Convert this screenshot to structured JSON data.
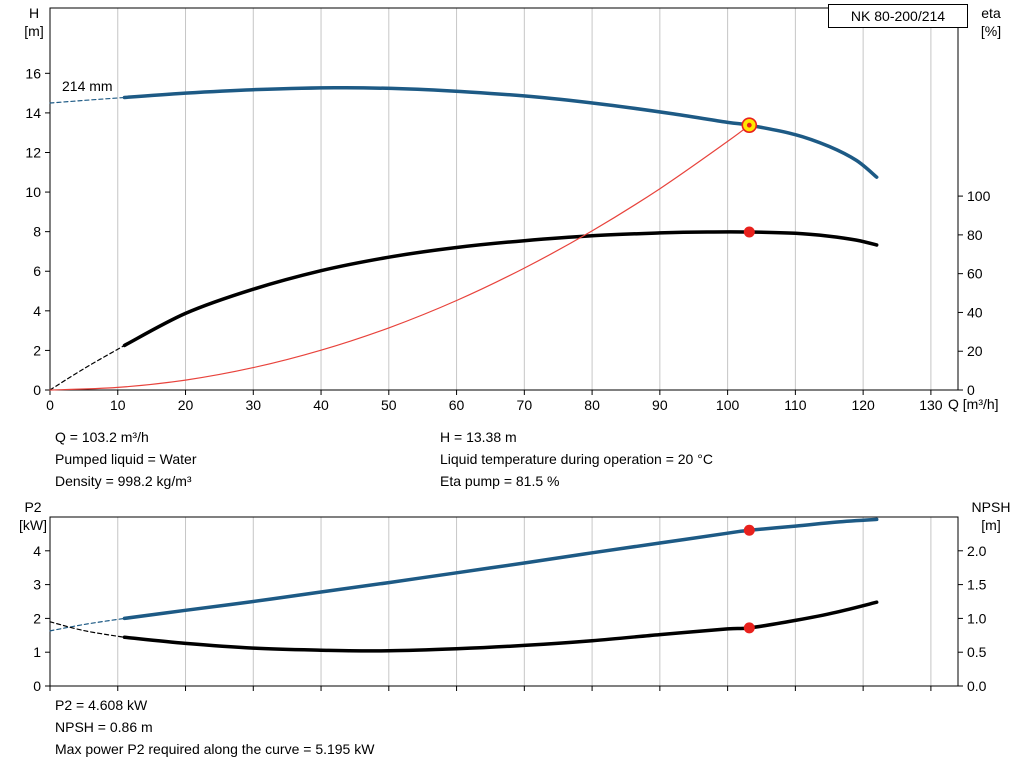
{
  "pump": {
    "model_box": "NK 80-200/214",
    "impeller_diameter": "214 mm"
  },
  "axis_titles": {
    "head": [
      "H",
      "[m]"
    ],
    "eta": [
      "eta",
      "[%]"
    ],
    "flow": "Q [m³/h]",
    "p2": [
      "P2",
      "[kW]"
    ],
    "npsh": [
      "NPSH",
      "[m]"
    ]
  },
  "info_top": {
    "left": [
      "Q = 103.2 m³/h",
      "Pumped liquid = Water",
      "Density = 998.2 kg/m³"
    ],
    "right": [
      "H = 13.38 m",
      "Liquid temperature during operation = 20 °C",
      "Eta pump = 81.5 %"
    ]
  },
  "info_bottom": [
    "P2 = 4.608 kW",
    "NPSH = 0.86 m",
    "Max power P2 required along the curve = 5.195 kW"
  ],
  "colors": {
    "curve_blue": "#1d5a85",
    "curve_black": "#000000",
    "system_red": "#e8433c",
    "marker_red": "#e8211d",
    "marker_yellow": "#ffe600",
    "grid": "#c6c6c6",
    "border": "#000000"
  },
  "chart_data": [
    {
      "type": "line",
      "title": "Head and efficiency vs flow (NK 80-200/214)",
      "x_axis": {
        "label": "Q [m³/h]",
        "min": 0,
        "max": 134,
        "show_tick_labels": true,
        "tick_values": [
          0,
          10,
          20,
          30,
          40,
          50,
          60,
          70,
          80,
          90,
          100,
          110,
          120,
          130
        ],
        "tick_labels": [
          "0",
          "10",
          "20",
          "30",
          "40",
          "50",
          "60",
          "70",
          "80",
          "90",
          "100",
          "110",
          "120",
          "130"
        ]
      },
      "y_left": {
        "label": "H [m]",
        "min": 0,
        "max": 19.3,
        "tick_values": [
          0,
          2,
          4,
          6,
          8,
          10,
          12,
          14,
          16
        ],
        "tick_labels": [
          "0",
          "2",
          "4",
          "6",
          "8",
          "10",
          "12",
          "14",
          "16"
        ]
      },
      "y_right": {
        "label": "eta [%]",
        "min": 0,
        "max": 197,
        "tick_values": [
          0,
          20,
          40,
          60,
          80,
          100
        ],
        "tick_labels": [
          "0",
          "20",
          "40",
          "60",
          "80",
          "100"
        ]
      },
      "grid": {
        "vertical": true,
        "horizontal": false
      },
      "series": [
        {
          "name": "head-curve-extension",
          "axis": "left",
          "color_key": "curve_blue",
          "width": 1.2,
          "dashed": true,
          "points": [
            [
              0,
              14.5
            ],
            [
              5,
              14.63
            ],
            [
              11,
              14.78
            ]
          ]
        },
        {
          "name": "head-curve",
          "axis": "left",
          "color_key": "curve_blue",
          "width": 3.5,
          "dashed": false,
          "points": [
            [
              11,
              14.78
            ],
            [
              20,
              15.0
            ],
            [
              30,
              15.17
            ],
            [
              42,
              15.27
            ],
            [
              52,
              15.22
            ],
            [
              62,
              15.05
            ],
            [
              72,
              14.8
            ],
            [
              82,
              14.42
            ],
            [
              92,
              13.95
            ],
            [
              100,
              13.52
            ],
            [
              103.2,
              13.38
            ],
            [
              110,
              12.9
            ],
            [
              115,
              12.3
            ],
            [
              119,
              11.6
            ],
            [
              122,
              10.75
            ]
          ]
        },
        {
          "name": "efficiency-curve-extension",
          "axis": "right",
          "color_key": "curve_black",
          "width": 1.2,
          "dashed": true,
          "points": [
            [
              0,
              0
            ],
            [
              5,
              11
            ],
            [
              11,
              23
            ]
          ]
        },
        {
          "name": "efficiency-curve",
          "axis": "right",
          "color_key": "curve_black",
          "width": 3.5,
          "dashed": false,
          "points": [
            [
              11,
              23
            ],
            [
              20,
              39.5
            ],
            [
              30,
              52
            ],
            [
              40,
              61.5
            ],
            [
              50,
              68.5
            ],
            [
              60,
              73.5
            ],
            [
              70,
              77
            ],
            [
              80,
              79.5
            ],
            [
              90,
              81
            ],
            [
              97,
              81.5
            ],
            [
              103.2,
              81.5
            ],
            [
              110,
              80.8
            ],
            [
              115,
              79.3
            ],
            [
              119,
              77.3
            ],
            [
              122,
              74.8
            ]
          ]
        },
        {
          "name": "system-curve",
          "axis": "left",
          "color_key": "system_red",
          "width": 1.2,
          "dashed": false,
          "points": [
            [
              0,
              0
            ],
            [
              10,
              0.13
            ],
            [
              20,
              0.5
            ],
            [
              30,
              1.13
            ],
            [
              40,
              2.01
            ],
            [
              50,
              3.14
            ],
            [
              60,
              4.52
            ],
            [
              70,
              6.16
            ],
            [
              80,
              8.04
            ],
            [
              90,
              10.17
            ],
            [
              100,
              12.56
            ],
            [
              103.2,
              13.38
            ]
          ]
        }
      ],
      "markers": [
        {
          "name": "duty-point",
          "style": "ring",
          "x": 103.2,
          "y": 13.38,
          "axis": "left",
          "r": 7,
          "fill_key": "marker_yellow",
          "stroke_key": "marker_red"
        },
        {
          "name": "efficiency-point",
          "style": "dot",
          "x": 103.2,
          "y": 81.5,
          "axis": "right",
          "r": 5.5,
          "fill_key": "marker_red"
        }
      ]
    },
    {
      "type": "line",
      "title": "Power P2 and NPSH vs flow",
      "x_axis": {
        "label": "",
        "min": 0,
        "max": 134,
        "show_tick_labels": false,
        "tick_values": [
          0,
          10,
          20,
          30,
          40,
          50,
          60,
          70,
          80,
          90,
          100,
          110,
          120,
          130
        ],
        "tick_labels": [
          "0",
          "10",
          "20",
          "30",
          "40",
          "50",
          "60",
          "70",
          "80",
          "90",
          "100",
          "110",
          "120",
          "130"
        ]
      },
      "y_left": {
        "label": "P2 [kW]",
        "min": 0,
        "max": 5,
        "tick_values": [
          0,
          1,
          2,
          3,
          4
        ],
        "tick_labels": [
          "0",
          "1",
          "2",
          "3",
          "4"
        ]
      },
      "y_right": {
        "label": "NPSH [m]",
        "min": 0,
        "max": 2.5,
        "tick_values": [
          0,
          0.5,
          1,
          1.5,
          2
        ],
        "tick_labels": [
          "0.0",
          "0.5",
          "1.0",
          "1.5",
          "2.0"
        ]
      },
      "grid": {
        "vertical": true,
        "horizontal": false
      },
      "series": [
        {
          "name": "p2-curve-extension",
          "axis": "left",
          "color_key": "curve_blue",
          "width": 1.2,
          "dashed": true,
          "points": [
            [
              0,
              1.63
            ],
            [
              5,
              1.82
            ],
            [
              11,
              2.0
            ]
          ]
        },
        {
          "name": "p2-curve",
          "axis": "left",
          "color_key": "curve_blue",
          "width": 3.5,
          "dashed": false,
          "points": [
            [
              11,
              2.0
            ],
            [
              20,
              2.24
            ],
            [
              30,
              2.5
            ],
            [
              40,
              2.78
            ],
            [
              50,
              3.06
            ],
            [
              60,
              3.35
            ],
            [
              70,
              3.64
            ],
            [
              80,
              3.94
            ],
            [
              90,
              4.23
            ],
            [
              100,
              4.52
            ],
            [
              103.2,
              4.608
            ],
            [
              110,
              4.73
            ],
            [
              116,
              4.85
            ],
            [
              122,
              4.93
            ]
          ]
        },
        {
          "name": "npsh-curve-extension",
          "axis": "right",
          "color_key": "curve_black",
          "width": 1.2,
          "dashed": true,
          "points": [
            [
              0,
              0.95
            ],
            [
              5,
              0.82
            ],
            [
              11,
              0.72
            ]
          ]
        },
        {
          "name": "npsh-curve",
          "axis": "right",
          "color_key": "curve_black",
          "width": 3.5,
          "dashed": false,
          "points": [
            [
              11,
              0.72
            ],
            [
              20,
              0.63
            ],
            [
              30,
              0.56
            ],
            [
              40,
              0.53
            ],
            [
              50,
              0.52
            ],
            [
              60,
              0.55
            ],
            [
              70,
              0.6
            ],
            [
              80,
              0.67
            ],
            [
              90,
              0.76
            ],
            [
              100,
              0.845
            ],
            [
              103.2,
              0.86
            ],
            [
              110,
              0.97
            ],
            [
              116,
              1.09
            ],
            [
              122,
              1.24
            ]
          ]
        }
      ],
      "markers": [
        {
          "name": "p2-point",
          "style": "dot",
          "x": 103.2,
          "y": 4.608,
          "axis": "left",
          "r": 5.5,
          "fill_key": "marker_red"
        },
        {
          "name": "npsh-point",
          "style": "dot",
          "x": 103.2,
          "y": 0.86,
          "axis": "right",
          "r": 5.5,
          "fill_key": "marker_red"
        }
      ]
    }
  ]
}
